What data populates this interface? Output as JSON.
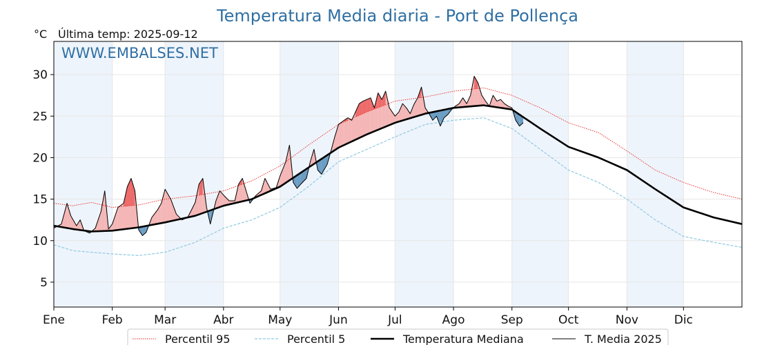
{
  "chart_data": {
    "type": "line",
    "title": "Temperatura Media diaria - Port de Pollença",
    "unit_label": "°C",
    "last_temp_label": "Última temp: 2025-09-12",
    "watermark": "WWW.EMBALSES.NET",
    "ylim": [
      2,
      34
    ],
    "yticks": [
      5,
      10,
      15,
      20,
      25,
      30
    ],
    "xlim": [
      0,
      365
    ],
    "months": [
      {
        "label": "Ene",
        "day": 0
      },
      {
        "label": "Feb",
        "day": 31
      },
      {
        "label": "Mar",
        "day": 59
      },
      {
        "label": "Abr",
        "day": 90
      },
      {
        "label": "May",
        "day": 120
      },
      {
        "label": "Jun",
        "day": 151
      },
      {
        "label": "Jul",
        "day": 181
      },
      {
        "label": "Ago",
        "day": 212
      },
      {
        "label": "Sep",
        "day": 243
      },
      {
        "label": "Oct",
        "day": 273
      },
      {
        "label": "Nov",
        "day": 304
      },
      {
        "label": "Dic",
        "day": 334
      }
    ],
    "grid": true,
    "legend_position": "bottom",
    "colors": {
      "p95": "#e8231f",
      "p5": "#8ec9e2",
      "median": "#000000",
      "media2025": "#000000",
      "above_fill": "#f4b6b6",
      "above_strong_fill": "#ee6b6b",
      "below_fill": "#6c9ec4",
      "month_band": "#eef4fb"
    },
    "series": [
      {
        "name": "Percentil 95",
        "style": "dotted",
        "points": [
          [
            0,
            14.5
          ],
          [
            10,
            14.2
          ],
          [
            20,
            14.6
          ],
          [
            31,
            14.0
          ],
          [
            45,
            14.3
          ],
          [
            59,
            15.0
          ],
          [
            75,
            15.4
          ],
          [
            90,
            16.0
          ],
          [
            105,
            17.2
          ],
          [
            120,
            19.0
          ],
          [
            135,
            21.5
          ],
          [
            151,
            24.0
          ],
          [
            166,
            25.5
          ],
          [
            181,
            26.8
          ],
          [
            197,
            27.3
          ],
          [
            212,
            28.0
          ],
          [
            228,
            28.4
          ],
          [
            243,
            27.5
          ],
          [
            258,
            26.0
          ],
          [
            273,
            24.2
          ],
          [
            289,
            23.0
          ],
          [
            304,
            20.8
          ],
          [
            319,
            18.5
          ],
          [
            334,
            17.0
          ],
          [
            350,
            15.8
          ],
          [
            365,
            15.0
          ]
        ]
      },
      {
        "name": "Percentil 5",
        "style": "dashed",
        "points": [
          [
            0,
            9.5
          ],
          [
            10,
            8.8
          ],
          [
            20,
            8.6
          ],
          [
            31,
            8.4
          ],
          [
            45,
            8.2
          ],
          [
            59,
            8.6
          ],
          [
            75,
            9.8
          ],
          [
            90,
            11.5
          ],
          [
            105,
            12.5
          ],
          [
            120,
            14.0
          ],
          [
            135,
            16.5
          ],
          [
            151,
            19.5
          ],
          [
            166,
            21.0
          ],
          [
            181,
            22.5
          ],
          [
            197,
            24.0
          ],
          [
            212,
            24.5
          ],
          [
            228,
            24.8
          ],
          [
            243,
            23.5
          ],
          [
            258,
            21.0
          ],
          [
            273,
            18.5
          ],
          [
            289,
            17.0
          ],
          [
            304,
            15.0
          ],
          [
            319,
            12.5
          ],
          [
            334,
            10.5
          ],
          [
            350,
            9.8
          ],
          [
            365,
            9.2
          ]
        ]
      },
      {
        "name": "Temperatura Mediana",
        "style": "bold",
        "points": [
          [
            0,
            11.8
          ],
          [
            10,
            11.4
          ],
          [
            20,
            11.1
          ],
          [
            31,
            11.2
          ],
          [
            45,
            11.6
          ],
          [
            59,
            12.2
          ],
          [
            75,
            13.0
          ],
          [
            90,
            14.2
          ],
          [
            105,
            15.0
          ],
          [
            120,
            16.5
          ],
          [
            135,
            18.8
          ],
          [
            151,
            21.2
          ],
          [
            166,
            22.8
          ],
          [
            181,
            24.2
          ],
          [
            197,
            25.3
          ],
          [
            212,
            26.0
          ],
          [
            228,
            26.3
          ],
          [
            243,
            25.8
          ],
          [
            258,
            23.5
          ],
          [
            273,
            21.3
          ],
          [
            289,
            20.0
          ],
          [
            304,
            18.5
          ],
          [
            319,
            16.2
          ],
          [
            334,
            14.0
          ],
          [
            350,
            12.8
          ],
          [
            365,
            12.0
          ]
        ]
      },
      {
        "name": "T. Media 2025",
        "style": "thin",
        "points": [
          [
            0,
            11.5
          ],
          [
            4,
            12.0
          ],
          [
            7,
            14.5
          ],
          [
            9,
            13.0
          ],
          [
            12,
            11.8
          ],
          [
            14,
            12.5
          ],
          [
            16,
            11.2
          ],
          [
            19,
            10.9
          ],
          [
            22,
            11.5
          ],
          [
            25,
            13.5
          ],
          [
            27,
            16.0
          ],
          [
            29,
            11.4
          ],
          [
            31,
            12.0
          ],
          [
            34,
            14.0
          ],
          [
            37,
            14.5
          ],
          [
            39,
            16.5
          ],
          [
            41,
            17.5
          ],
          [
            43,
            16.0
          ],
          [
            45,
            11.3
          ],
          [
            47,
            10.6
          ],
          [
            49,
            11.0
          ],
          [
            52,
            12.8
          ],
          [
            55,
            13.7
          ],
          [
            57,
            14.5
          ],
          [
            59,
            16.2
          ],
          [
            62,
            15.0
          ],
          [
            65,
            13.2
          ],
          [
            68,
            12.5
          ],
          [
            71,
            12.8
          ],
          [
            75,
            14.6
          ],
          [
            77,
            16.8
          ],
          [
            79,
            17.5
          ],
          [
            81,
            14.0
          ],
          [
            83,
            12.0
          ],
          [
            86,
            14.8
          ],
          [
            88,
            16.0
          ],
          [
            90,
            15.5
          ],
          [
            93,
            14.8
          ],
          [
            96,
            14.8
          ],
          [
            98,
            16.8
          ],
          [
            100,
            17.5
          ],
          [
            102,
            16.0
          ],
          [
            104,
            14.5
          ],
          [
            107,
            15.4
          ],
          [
            110,
            16.0
          ],
          [
            112,
            17.5
          ],
          [
            115,
            16.2
          ],
          [
            118,
            16.4
          ],
          [
            120,
            17.8
          ],
          [
            123,
            19.5
          ],
          [
            125,
            21.5
          ],
          [
            127,
            17.0
          ],
          [
            129,
            16.3
          ],
          [
            131,
            16.8
          ],
          [
            134,
            17.5
          ],
          [
            136,
            19.5
          ],
          [
            138,
            21.0
          ],
          [
            140,
            18.5
          ],
          [
            142,
            18.0
          ],
          [
            145,
            19.2
          ],
          [
            147,
            20.8
          ],
          [
            149,
            22.5
          ],
          [
            151,
            24.0
          ],
          [
            154,
            24.5
          ],
          [
            156,
            24.8
          ],
          [
            158,
            24.5
          ],
          [
            160,
            25.5
          ],
          [
            162,
            26.5
          ],
          [
            164,
            26.8
          ],
          [
            166,
            27.0
          ],
          [
            168,
            27.2
          ],
          [
            170,
            26.0
          ],
          [
            172,
            27.8
          ],
          [
            174,
            27.0
          ],
          [
            176,
            28.0
          ],
          [
            178,
            26.0
          ],
          [
            181,
            25.0
          ],
          [
            183,
            25.5
          ],
          [
            185,
            26.5
          ],
          [
            187,
            26.0
          ],
          [
            189,
            25.3
          ],
          [
            191,
            26.4
          ],
          [
            193,
            27.2
          ],
          [
            195,
            28.5
          ],
          [
            197,
            26.0
          ],
          [
            199,
            25.3
          ],
          [
            201,
            24.5
          ],
          [
            203,
            25.0
          ],
          [
            205,
            23.8
          ],
          [
            207,
            24.8
          ],
          [
            209,
            25.2
          ],
          [
            211,
            25.8
          ],
          [
            213,
            26.2
          ],
          [
            215,
            26.5
          ],
          [
            217,
            27.2
          ],
          [
            219,
            26.5
          ],
          [
            221,
            27.5
          ],
          [
            223,
            29.8
          ],
          [
            225,
            29.0
          ],
          [
            227,
            27.5
          ],
          [
            229,
            26.8
          ],
          [
            231,
            26.2
          ],
          [
            233,
            27.5
          ],
          [
            235,
            26.8
          ],
          [
            237,
            27.0
          ],
          [
            239,
            26.5
          ],
          [
            241,
            26.2
          ],
          [
            243,
            26.0
          ],
          [
            245,
            24.5
          ],
          [
            247,
            23.8
          ],
          [
            249,
            24.2
          ]
        ]
      }
    ],
    "legend": [
      {
        "name": "Percentil 95",
        "style": "dotted"
      },
      {
        "name": "Percentil 5",
        "style": "dashed"
      },
      {
        "name": "Temperatura Mediana",
        "style": "bold"
      },
      {
        "name": "T. Media 2025",
        "style": "thin"
      }
    ]
  }
}
